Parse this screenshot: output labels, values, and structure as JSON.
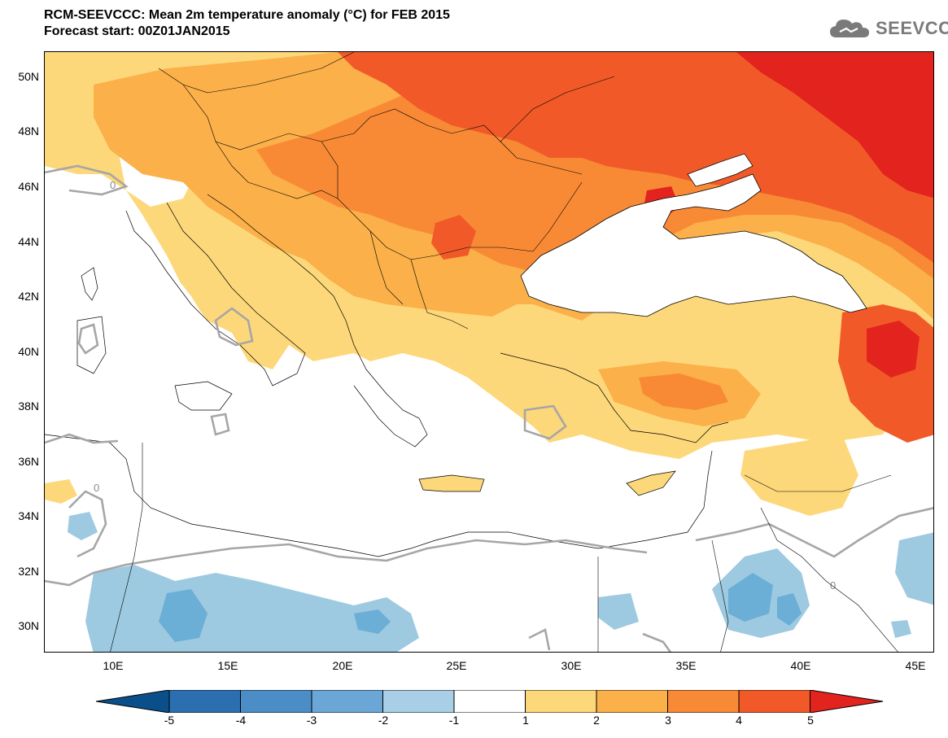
{
  "header": {
    "title": "RCM-SEEVCCC: Mean 2m temperature anomaly (°C) for FEB 2015",
    "subtitle": "Forecast start: 00Z01JAN2015"
  },
  "logo": {
    "text": "SEEVCCC",
    "icon": "cloud-icon"
  },
  "map": {
    "lat_labels": [
      "50N",
      "48N",
      "46N",
      "44N",
      "42N",
      "40N",
      "38N",
      "36N",
      "34N",
      "32N",
      "30N"
    ],
    "lon_labels": [
      "10E",
      "15E",
      "20E",
      "25E",
      "30E",
      "35E",
      "40E",
      "45E"
    ],
    "contour_label": "0",
    "colors": {
      "ocean": "#ffffff",
      "pos1": "#fdd87a",
      "pos2": "#fbb04a",
      "pos3": "#f88a36",
      "pos4": "#f15a28",
      "pos5": "#e3231e",
      "neg1": "#9ecae1",
      "neg2": "#6baed6"
    }
  },
  "colorbar": {
    "labels": [
      "-5",
      "-4",
      "-3",
      "-2",
      "-1",
      "1",
      "2",
      "3",
      "4",
      "5"
    ],
    "colors": [
      "#0b4f8a",
      "#2b6fb0",
      "#4a8dc7",
      "#6aa7d6",
      "#a9cfe6",
      "#ffffff",
      "#fdd87a",
      "#fbb04a",
      "#f88a36",
      "#f15a28",
      "#e3231e"
    ]
  }
}
